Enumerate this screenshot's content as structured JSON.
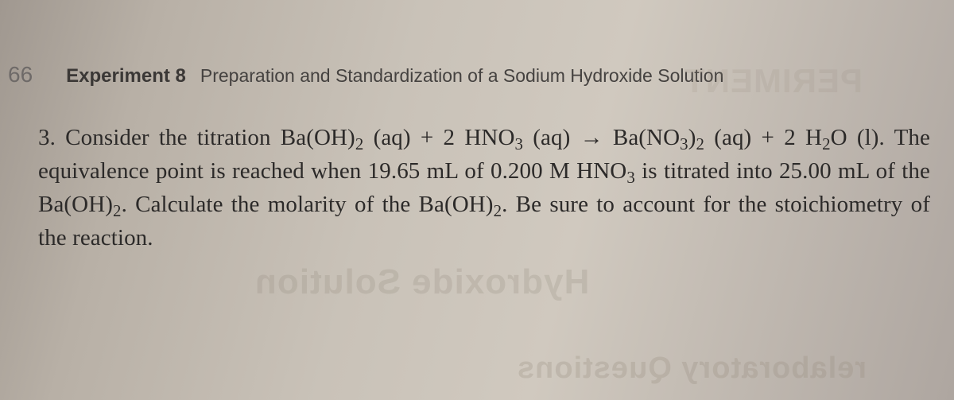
{
  "page_number": "66",
  "experiment_label": "Experiment 8",
  "experiment_title": "Preparation and Standardization of a Sodium Hydroxide Solution",
  "question_number": "3.",
  "question_pre": "Consider the titration ",
  "equation": "Ba(OH)<sub>2</sub> (aq) + 2 HNO<sub>3</sub> (aq) → Ba(NO<sub>3</sub>)<sub>2</sub> (aq) + 2 H<sub>2</sub>O (l). ",
  "question_post": "The equivalence point is reached when 19.65 mL of 0.200 M HNO<sub>3</sub> is titrated into 25.00 mL of the Ba(OH)<sub>2</sub>. Calculate the molarity of the Ba(OH)<sub>2</sub>. Be sure to account for the stoi­chiometry of the reaction.",
  "ghost_text_1": "Hydroxide Solution",
  "ghost_text_2": "relaboratory Questions",
  "ghost_text_3": "PERIMENT"
}
